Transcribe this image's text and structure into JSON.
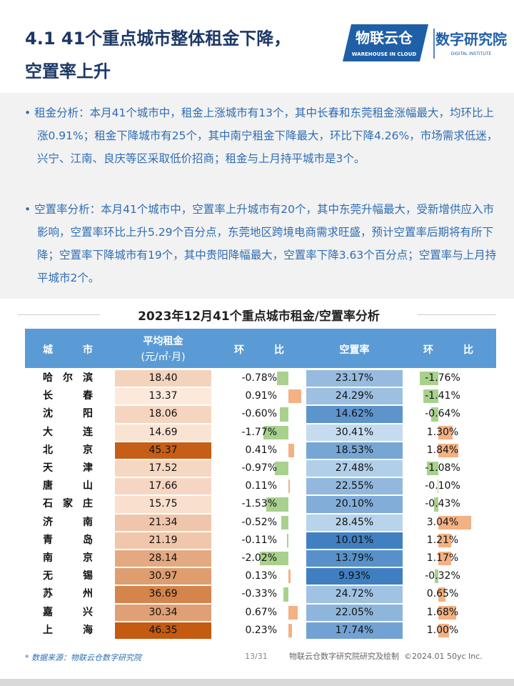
{
  "header": {
    "title_lines": [
      "4.1 41个重点城市整体租金下降，",
      "空置率上升"
    ],
    "logo": {
      "brand": "物联云仓",
      "brand_en": "WAREHOUSE IN CLOUD",
      "institute": "数字研究院",
      "institute_en": "DIGITAL INSTITUTE"
    }
  },
  "bullets": [
    "租金分析：本月41个城市中，租金上涨城市有13个，其中长春和东莞租金涨幅最大，均环比上涨0.91%；租金下降城市有25个，其中南宁租金下降最大，环比下降4.26%，市场需求低迷，兴宁、江南、良庆等区采取低价招商；租金与上月持平城市是3个。",
    "空置率分析：本月41个城市中，空置率上升城市有20个，其中东莞升幅最大，受新增供应入市影响，空置率环比上升5.29个百分点，东莞地区跨境电商需求旺盛，预计空置率后期将有所下降；空置率下降城市有19个，其中贵阳降幅最大，空置率下降3.63个百分点；空置率与上月持平城市2个。"
  ],
  "table": {
    "title": "2023年12月41个重点城市租金/空置率分析",
    "headers": [
      "城市",
      "平均租金",
      "(元/㎡·月)",
      "环比",
      "空置率",
      "环比"
    ],
    "rows": [
      {
        "city": "哈尔滨",
        "rent": 18.4,
        "rent_label": "18.40",
        "rent_mom": -0.78,
        "rent_mom_label": "-0.78%",
        "vacancy": 23.17,
        "vacancy_label": "23.17%",
        "vacancy_mom": -1.76,
        "vacancy_mom_label": "-1.76%"
      },
      {
        "city": "长春",
        "rent": 13.37,
        "rent_label": "13.37",
        "rent_mom": 0.91,
        "rent_mom_label": "0.91%",
        "vacancy": 24.29,
        "vacancy_label": "24.29%",
        "vacancy_mom": -1.41,
        "vacancy_mom_label": "-1.41%"
      },
      {
        "city": "沈阳",
        "rent": 18.06,
        "rent_label": "18.06",
        "rent_mom": -0.6,
        "rent_mom_label": "-0.60%",
        "vacancy": 14.62,
        "vacancy_label": "14.62%",
        "vacancy_mom": -0.64,
        "vacancy_mom_label": "-0.64%"
      },
      {
        "city": "大连",
        "rent": 14.69,
        "rent_label": "14.69",
        "rent_mom": -1.77,
        "rent_mom_label": "-1.77%",
        "vacancy": 30.41,
        "vacancy_label": "30.41%",
        "vacancy_mom": 1.3,
        "vacancy_mom_label": "1.30%"
      },
      {
        "city": "北京",
        "rent": 45.37,
        "rent_label": "45.37",
        "rent_mom": 0.41,
        "rent_mom_label": "0.41%",
        "vacancy": 18.53,
        "vacancy_label": "18.53%",
        "vacancy_mom": 1.84,
        "vacancy_mom_label": "1.84%"
      },
      {
        "city": "天津",
        "rent": 17.52,
        "rent_label": "17.52",
        "rent_mom": -0.97,
        "rent_mom_label": "-0.97%",
        "vacancy": 27.48,
        "vacancy_label": "27.48%",
        "vacancy_mom": -1.08,
        "vacancy_mom_label": "-1.08%"
      },
      {
        "city": "唐山",
        "rent": 17.66,
        "rent_label": "17.66",
        "rent_mom": 0.11,
        "rent_mom_label": "0.11%",
        "vacancy": 22.55,
        "vacancy_label": "22.55%",
        "vacancy_mom": -0.1,
        "vacancy_mom_label": "-0.10%"
      },
      {
        "city": "石家庄",
        "rent": 15.75,
        "rent_label": "15.75",
        "rent_mom": -1.53,
        "rent_mom_label": "-1.53%",
        "vacancy": 20.1,
        "vacancy_label": "20.10%",
        "vacancy_mom": -0.43,
        "vacancy_mom_label": "-0.43%"
      },
      {
        "city": "济南",
        "rent": 21.34,
        "rent_label": "21.34",
        "rent_mom": -0.52,
        "rent_mom_label": "-0.52%",
        "vacancy": 28.45,
        "vacancy_label": "28.45%",
        "vacancy_mom": 3.04,
        "vacancy_mom_label": "3.04%"
      },
      {
        "city": "青岛",
        "rent": 21.19,
        "rent_label": "21.19",
        "rent_mom": -0.11,
        "rent_mom_label": "-0.11%",
        "vacancy": 10.01,
        "vacancy_label": "10.01%",
        "vacancy_mom": 1.21,
        "vacancy_mom_label": "1.21%"
      },
      {
        "city": "南京",
        "rent": 28.14,
        "rent_label": "28.14",
        "rent_mom": -2.02,
        "rent_mom_label": "-2.02%",
        "vacancy": 13.79,
        "vacancy_label": "13.79%",
        "vacancy_mom": 1.17,
        "vacancy_mom_label": "1.17%"
      },
      {
        "city": "无锡",
        "rent": 30.97,
        "rent_label": "30.97",
        "rent_mom": 0.13,
        "rent_mom_label": "0.13%",
        "vacancy": 9.93,
        "vacancy_label": "9.93%",
        "vacancy_mom": -0.32,
        "vacancy_mom_label": "-0.32%"
      },
      {
        "city": "苏州",
        "rent": 36.69,
        "rent_label": "36.69",
        "rent_mom": -0.33,
        "rent_mom_label": "-0.33%",
        "vacancy": 24.72,
        "vacancy_label": "24.72%",
        "vacancy_mom": 0.65,
        "vacancy_mom_label": "0.65%"
      },
      {
        "city": "嘉兴",
        "rent": 30.34,
        "rent_label": "30.34",
        "rent_mom": 0.67,
        "rent_mom_label": "0.67%",
        "vacancy": 22.05,
        "vacancy_label": "22.05%",
        "vacancy_mom": 1.68,
        "vacancy_mom_label": "1.68%"
      },
      {
        "city": "上海",
        "rent": 46.35,
        "rent_label": "46.35",
        "rent_mom": 0.23,
        "rent_mom_label": "0.23%",
        "vacancy": 17.74,
        "vacancy_label": "17.74%",
        "vacancy_mom": 1.0,
        "vacancy_mom_label": "1.00%"
      }
    ]
  },
  "footer": {
    "source": "* 数据来源：物联云仓数字研究院",
    "page": "13/31",
    "credit": "物联云仓数字研究院研究及绘制  ©2024.01 50yc Inc."
  }
}
